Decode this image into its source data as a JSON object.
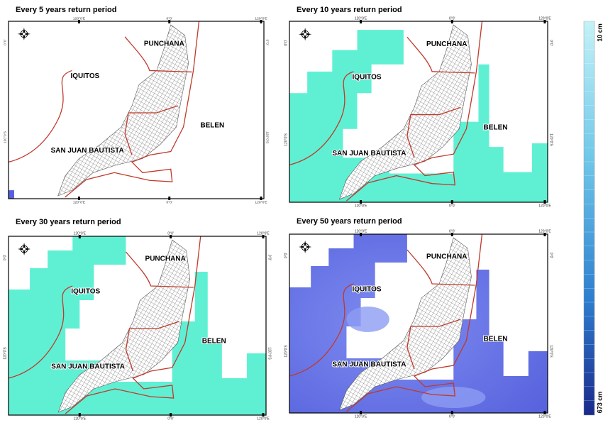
{
  "panels": [
    {
      "title": "Every 5 years return period"
    },
    {
      "title": "Every 10 years return period"
    },
    {
      "title": "Every 30 years return period"
    },
    {
      "title": "Every 50 years return period"
    }
  ],
  "places": [
    "PUNCHANA",
    "IQUITOS",
    "BELEN",
    "SAN JUAN BAUTISTA"
  ],
  "axis_labels": {
    "top": [
      "120°0'E",
      "0°0'",
      "120°0'E"
    ],
    "side": [
      "0°0'",
      "120°0'S"
    ]
  },
  "legend": {
    "top": "10 cm",
    "bottom": "673 cm"
  }
}
